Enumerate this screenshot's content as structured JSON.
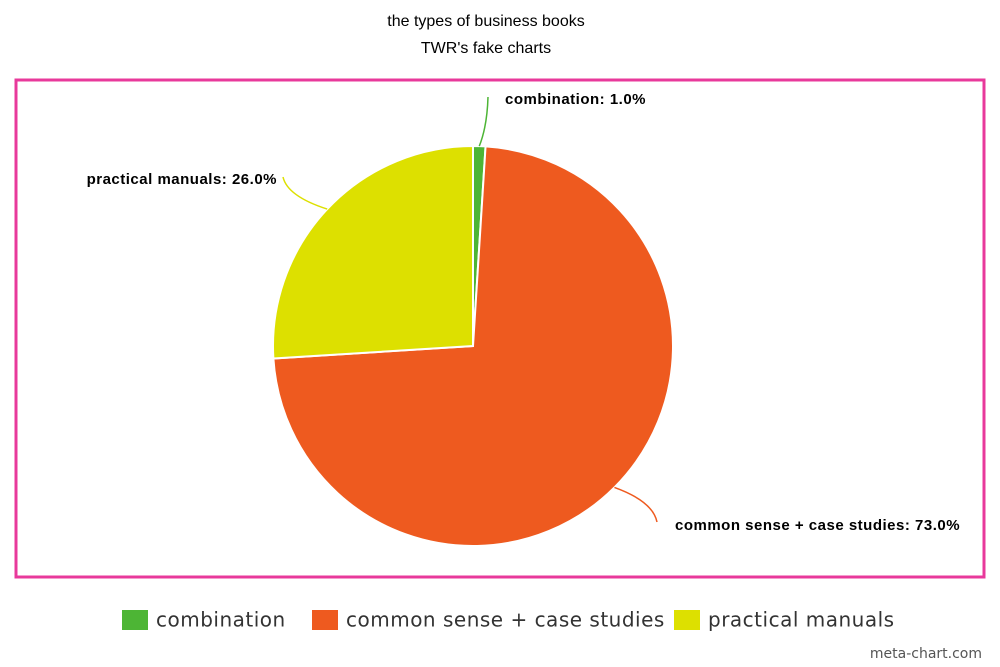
{
  "chart_data": {
    "type": "pie",
    "title": "the types of business books",
    "subtitle": "TWR's fake charts",
    "categories": [
      "combination",
      "common sense + case studies",
      "practical manuals"
    ],
    "values": [
      1.0,
      73.0,
      26.0
    ],
    "value_labels": [
      "combination: 1.0%",
      "common sense + case studies: 73.0%",
      "practical manuals: 26.0%"
    ],
    "colors": [
      "#4db535",
      "#ee5a1f",
      "#dde000"
    ],
    "legend": "bottom",
    "credit": "meta-chart.com"
  }
}
